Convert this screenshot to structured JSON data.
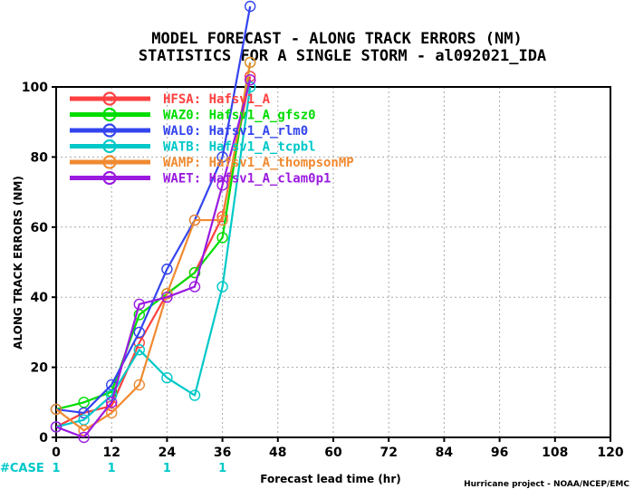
{
  "chart_data": {
    "type": "line",
    "title": "MODEL FORECAST - ALONG TRACK ERRORS (NM)",
    "subtitle": "STATISTICS FOR A SINGLE STORM - al092021_IDA",
    "xlabel": "Forecast lead time (hr)",
    "ylabel": "ALONG TRACK ERRORS (NM)",
    "xlim": [
      0,
      120
    ],
    "ylim": [
      0,
      100
    ],
    "x_ticks": [
      0,
      12,
      24,
      36,
      48,
      60,
      72,
      84,
      96,
      108,
      120
    ],
    "y_ticks": [
      0,
      20,
      40,
      60,
      80,
      100
    ],
    "grid": true,
    "legend_position": "top-left",
    "x": [
      0,
      6,
      12,
      18,
      24,
      30,
      36,
      42
    ],
    "series": [
      {
        "name": "HFSA: Hafsv1_A",
        "color": "#ff4040",
        "values": [
          3,
          7,
          9,
          27,
          41,
          47,
          63,
          103
        ]
      },
      {
        "name": "WAZ0: Hafsv1_A_gfsz0",
        "color": "#00dd00",
        "values": [
          8,
          10,
          13,
          35,
          41,
          47,
          57,
          107
        ]
      },
      {
        "name": "WAL0: Hafsv1_A_rlm0",
        "color": "#3344ee",
        "values": [
          8,
          7,
          15,
          30,
          48,
          62,
          80,
          123
        ]
      },
      {
        "name": "WATB: Hafsv1_A_tcpbl",
        "color": "#00c8c8",
        "values": [
          3,
          5,
          12,
          25,
          17,
          12,
          43,
          100
        ]
      },
      {
        "name": "WAMP: Hafsv1_A_thompsonMP",
        "color": "#f08a30",
        "values": [
          8,
          2,
          7,
          15,
          41,
          62,
          62,
          107
        ]
      },
      {
        "name": "WAET: Hafsv1_A_clam0p1",
        "color": "#9a1ae0",
        "values": [
          3,
          0,
          10,
          38,
          40,
          43,
          72,
          102
        ]
      }
    ],
    "case_label": "#CASE",
    "case_counts": [
      {
        "hour": 0,
        "count": "1"
      },
      {
        "hour": 12,
        "count": "1"
      },
      {
        "hour": 24,
        "count": "1"
      },
      {
        "hour": 36,
        "count": "1"
      }
    ],
    "credit": "Hurricane project - NOAA/NCEP/EMC"
  }
}
